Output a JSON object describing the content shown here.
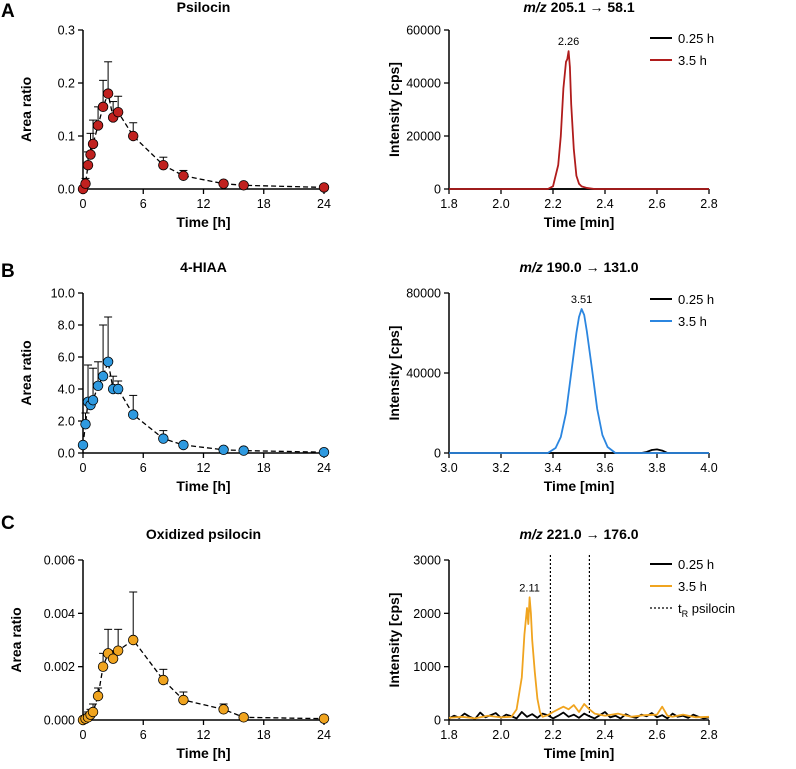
{
  "panel_letters": [
    "A",
    "B",
    "C"
  ],
  "chart_data": [
    {
      "id": "A-left",
      "type": "scatter",
      "title": "Psilocin",
      "xlabel": "Time [h]",
      "ylabel": "Area ratio",
      "xlim": [
        0,
        24
      ],
      "ylim": [
        0,
        0.3
      ],
      "xticks": [
        0,
        6,
        12,
        18,
        24
      ],
      "yticks": [
        0,
        0.1,
        0.2,
        0.3
      ],
      "ytick_labels": [
        "0.0",
        "0.1",
        "0.2",
        "0.3"
      ],
      "marker_color": "#c0211f",
      "x": [
        0,
        0.25,
        0.5,
        0.75,
        1,
        1.5,
        2,
        2.5,
        3,
        3.5,
        5,
        8,
        10,
        14,
        16,
        24
      ],
      "y": [
        0.0,
        0.01,
        0.045,
        0.065,
        0.085,
        0.12,
        0.155,
        0.18,
        0.135,
        0.145,
        0.1,
        0.045,
        0.025,
        0.01,
        0.007,
        0.003
      ],
      "err": [
        0.0,
        0.01,
        0.025,
        0.04,
        0.045,
        0.035,
        0.05,
        0.06,
        0.03,
        0.03,
        0.025,
        0.015,
        0.01,
        0.005,
        0.003,
        0.0
      ]
    },
    {
      "id": "A-right",
      "type": "line",
      "title": "m/z 205.1 → 58.1",
      "title_italic": "m/z",
      "title_rest": " 205.1 → 58.1",
      "xlabel": "Time [min]",
      "ylabel": "Intensity [cps]",
      "xlim": [
        1.8,
        2.8
      ],
      "ylim": [
        0,
        60000
      ],
      "xticks": [
        1.8,
        2.0,
        2.2,
        2.4,
        2.6,
        2.8
      ],
      "yticks": [
        0,
        20000,
        40000,
        60000
      ],
      "xtick_labels": [
        "1.8",
        "2.0",
        "2.2",
        "2.4",
        "2.6",
        "2.8"
      ],
      "ytick_labels": [
        "0",
        "20000",
        "40000",
        "60000"
      ],
      "peak_label": "2.26",
      "peak_x": 2.26,
      "peak_y": 52000,
      "series": [
        {
          "name": "0.25 h",
          "color": "#000000",
          "x": [
            1.8,
            2.8
          ],
          "y": [
            0,
            0
          ]
        },
        {
          "name": "3.5 h",
          "color": "#b01c1c",
          "x": [
            1.8,
            2.18,
            2.2,
            2.22,
            2.23,
            2.24,
            2.25,
            2.255,
            2.26,
            2.265,
            2.27,
            2.28,
            2.29,
            2.3,
            2.31,
            2.33,
            2.36,
            2.8
          ],
          "y": [
            0,
            0,
            1000,
            9000,
            20000,
            38000,
            48000,
            49000,
            52000,
            46000,
            32000,
            15000,
            5000,
            2000,
            1000,
            400,
            0,
            0
          ]
        }
      ]
    },
    {
      "id": "B-left",
      "type": "scatter",
      "title": "4-HIAA",
      "xlabel": "Time [h]",
      "ylabel": "Area ratio",
      "xlim": [
        0,
        24
      ],
      "ylim": [
        0,
        10
      ],
      "xticks": [
        0,
        6,
        12,
        18,
        24
      ],
      "yticks": [
        0,
        2,
        4,
        6,
        8,
        10
      ],
      "ytick_labels": [
        "0.0",
        "2.0",
        "4.0",
        "6.0",
        "8.0",
        "10.0"
      ],
      "marker_color": "#2f9ae0",
      "x": [
        0,
        0.25,
        0.5,
        0.75,
        1,
        1.5,
        2,
        2.5,
        3,
        3.5,
        5,
        8,
        10,
        14,
        16,
        24
      ],
      "y": [
        0.5,
        1.8,
        3.2,
        3.0,
        3.3,
        4.2,
        4.8,
        5.7,
        4.0,
        4.0,
        2.4,
        0.9,
        0.5,
        0.2,
        0.15,
        0.05
      ],
      "err": [
        0.0,
        0.7,
        2.3,
        0.0,
        2.0,
        1.5,
        3.2,
        2.8,
        0.8,
        0.5,
        1.2,
        0.5,
        0.2,
        0.1,
        0.05,
        0.0
      ]
    },
    {
      "id": "B-right",
      "type": "line",
      "title": "m/z 190.0 → 131.0",
      "title_italic": "m/z",
      "title_rest": " 190.0 → 131.0",
      "xlabel": "Time [min]",
      "ylabel": "Intensity [cps]",
      "xlim": [
        3.0,
        4.0
      ],
      "ylim": [
        0,
        80000
      ],
      "xticks": [
        3.0,
        3.2,
        3.4,
        3.6,
        3.8,
        4.0
      ],
      "yticks": [
        0,
        40000,
        80000
      ],
      "xtick_labels": [
        "3.0",
        "3.2",
        "3.4",
        "3.6",
        "3.8",
        "4.0"
      ],
      "ytick_labels": [
        "0",
        "40000",
        "80000"
      ],
      "peak_label": "3.51",
      "peak_x": 3.51,
      "peak_y": 72000,
      "series": [
        {
          "name": "0.25 h",
          "color": "#000000",
          "x": [
            3.0,
            3.74,
            3.76,
            3.78,
            3.8,
            3.82,
            3.84,
            4.0
          ],
          "y": [
            0,
            0,
            500,
            1500,
            1800,
            1200,
            0,
            0
          ]
        },
        {
          "name": "3.5 h",
          "color": "#2b86e0",
          "x": [
            3.0,
            3.38,
            3.41,
            3.43,
            3.45,
            3.47,
            3.49,
            3.5,
            3.51,
            3.52,
            3.53,
            3.55,
            3.57,
            3.59,
            3.61,
            3.64,
            4.0
          ],
          "y": [
            0,
            0,
            2500,
            8000,
            20000,
            40000,
            60000,
            68000,
            72000,
            69000,
            61000,
            42000,
            22000,
            9000,
            3000,
            0,
            0
          ]
        }
      ]
    },
    {
      "id": "C-left",
      "type": "scatter",
      "title": "Oxidized psilocin",
      "xlabel": "Time [h]",
      "ylabel": "Area ratio",
      "xlim": [
        0,
        24
      ],
      "ylim": [
        0,
        0.006
      ],
      "xticks": [
        0,
        6,
        12,
        18,
        24
      ],
      "yticks": [
        0,
        0.002,
        0.004,
        0.006
      ],
      "ytick_labels": [
        "0.000",
        "0.002",
        "0.004",
        "0.006"
      ],
      "marker_color": "#f0a41f",
      "x": [
        0,
        0.25,
        0.5,
        0.75,
        1,
        1.5,
        2,
        2.5,
        3,
        3.5,
        5,
        8,
        10,
        14,
        16,
        24
      ],
      "y": [
        0.0,
        5e-05,
        0.0001,
        0.0002,
        0.0003,
        0.0009,
        0.002,
        0.0025,
        0.0023,
        0.0026,
        0.003,
        0.0015,
        0.00075,
        0.0004,
        0.0001,
        5e-05
      ],
      "err": [
        0.0,
        0.0,
        0.0002,
        0.0002,
        0.0003,
        0.0003,
        0.0005,
        0.0009,
        0.0003,
        0.0008,
        0.0018,
        0.0004,
        0.0003,
        0.0002,
        0.0,
        0.0
      ]
    },
    {
      "id": "C-right",
      "type": "line",
      "title": "m/z 221.0 → 176.0",
      "title_italic": "m/z",
      "title_rest": " 221.0 → 176.0",
      "xlabel": "Time [min]",
      "ylabel": "Intensity [cps]",
      "xlim": [
        1.8,
        2.8
      ],
      "ylim": [
        0,
        3000
      ],
      "xticks": [
        1.8,
        2.0,
        2.2,
        2.4,
        2.6,
        2.8
      ],
      "yticks": [
        0,
        1000,
        2000,
        3000
      ],
      "xtick_labels": [
        "1.8",
        "2.0",
        "2.2",
        "2.4",
        "2.6",
        "2.8"
      ],
      "ytick_labels": [
        "0",
        "1000",
        "2000",
        "3000"
      ],
      "peak_label": "2.11",
      "peak_x": 2.11,
      "peak_y": 2300,
      "vlines": [
        2.19,
        2.34
      ],
      "series": [
        {
          "name": "0.25 h",
          "color": "#000000",
          "x": [
            1.8,
            1.82,
            1.84,
            1.86,
            1.88,
            1.9,
            1.92,
            1.94,
            1.96,
            1.98,
            2.0,
            2.02,
            2.04,
            2.06,
            2.08,
            2.1,
            2.12,
            2.14,
            2.16,
            2.18,
            2.2,
            2.22,
            2.24,
            2.26,
            2.28,
            2.3,
            2.32,
            2.34,
            2.36,
            2.38,
            2.4,
            2.42,
            2.44,
            2.46,
            2.48,
            2.5,
            2.52,
            2.54,
            2.56,
            2.58,
            2.6,
            2.62,
            2.64,
            2.66,
            2.68,
            2.7,
            2.72,
            2.74,
            2.76,
            2.78,
            2.8
          ],
          "y": [
            30,
            80,
            40,
            120,
            60,
            20,
            140,
            50,
            90,
            130,
            40,
            100,
            70,
            30,
            150,
            60,
            110,
            40,
            120,
            90,
            30,
            80,
            140,
            60,
            100,
            40,
            120,
            70,
            30,
            90,
            150,
            50,
            80,
            30,
            110,
            60,
            40,
            100,
            70,
            130,
            50,
            90,
            30,
            120,
            60,
            80,
            40,
            100,
            60,
            30,
            50
          ]
        },
        {
          "name": "3.5 h",
          "color": "#f0a41f",
          "x": [
            1.8,
            1.85,
            1.9,
            1.95,
            2.0,
            2.04,
            2.06,
            2.08,
            2.09,
            2.1,
            2.105,
            2.11,
            2.115,
            2.12,
            2.13,
            2.14,
            2.15,
            2.16,
            2.18,
            2.2,
            2.22,
            2.24,
            2.26,
            2.28,
            2.3,
            2.32,
            2.34,
            2.36,
            2.4,
            2.45,
            2.5,
            2.55,
            2.6,
            2.62,
            2.64,
            2.66,
            2.7,
            2.75,
            2.8
          ],
          "y": [
            40,
            60,
            30,
            80,
            50,
            60,
            200,
            800,
            1600,
            2100,
            1800,
            2300,
            2000,
            1500,
            900,
            400,
            150,
            60,
            90,
            150,
            200,
            250,
            200,
            280,
            150,
            300,
            200,
            120,
            80,
            120,
            60,
            90,
            100,
            250,
            80,
            60,
            100,
            50,
            60
          ]
        }
      ],
      "extra_legend": {
        "label_t": "t",
        "label_sub": "R",
        "label_rest": " psilocin"
      }
    }
  ]
}
